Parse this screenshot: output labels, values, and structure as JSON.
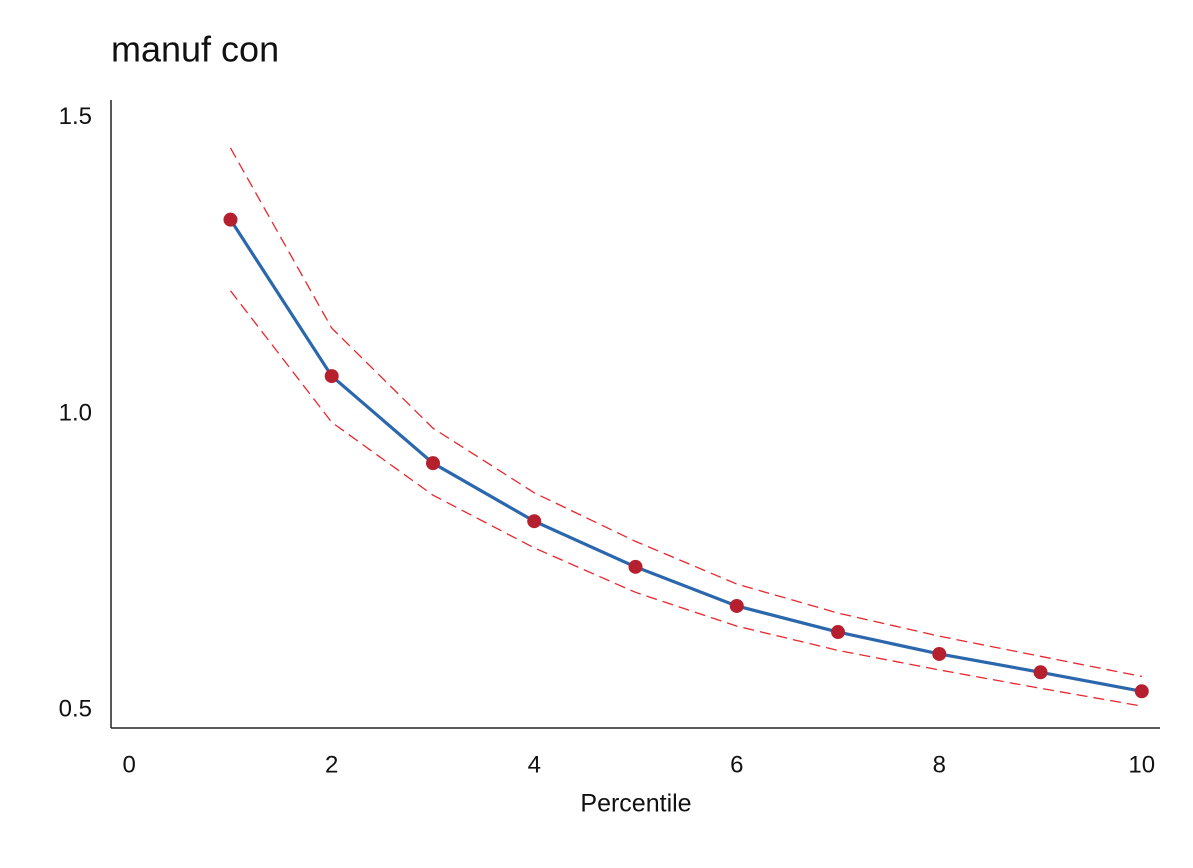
{
  "chart_data": {
    "type": "line",
    "title": "manuf con",
    "x_label": "Percentile",
    "x": [
      1,
      2,
      3,
      4,
      5,
      6,
      7,
      8,
      9,
      10
    ],
    "series": [
      {
        "color": "#e8272c",
        "dash": true,
        "markers": false,
        "values": [
          1.449,
          1.145,
          0.976,
          0.867,
          0.785,
          0.713,
          0.664,
          0.625,
          0.591,
          0.557
        ]
      },
      {
        "color": "#e8272c",
        "dash": true,
        "markers": false,
        "values": [
          1.208,
          0.986,
          0.863,
          0.774,
          0.699,
          0.642,
          0.601,
          0.568,
          0.537,
          0.507
        ]
      },
      {
        "color": "#2b67ad",
        "marker_color": "#b51f2e",
        "dash": false,
        "markers": true,
        "values": [
          1.328,
          1.064,
          0.917,
          0.819,
          0.742,
          0.676,
          0.632,
          0.595,
          0.564,
          0.532
        ]
      }
    ],
    "xlim": [
      -0.18,
      10.18
    ],
    "xticks": [
      0,
      2,
      4,
      6,
      8,
      10
    ],
    "ylim": [
      0.47,
      1.53
    ],
    "yticks": [
      0.5,
      {
        "value": 1,
        "label": "1.0"
      },
      1.5
    ],
    "grid": false
  }
}
